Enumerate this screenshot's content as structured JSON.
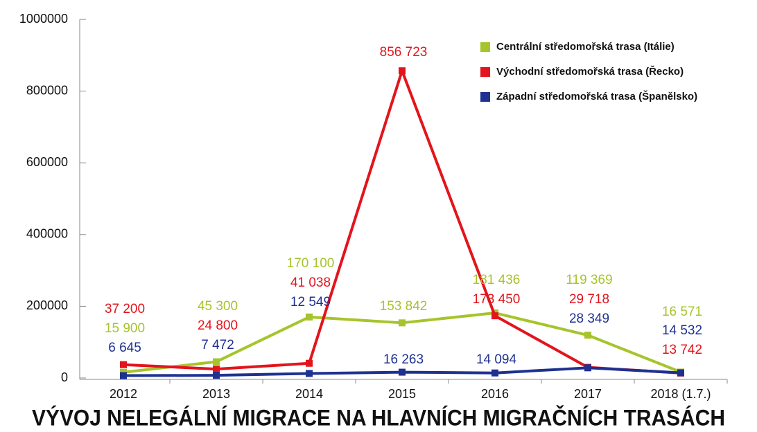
{
  "chart_data": {
    "type": "line",
    "title": "VÝVOJ NELEGÁLNÍ MIGRACE NA HLAVNÍCH MIGRAČNÍCH TRASÁCH",
    "categories": [
      "2012",
      "2013",
      "2014",
      "2015",
      "2016",
      "2017",
      "2018 (1.7.)"
    ],
    "series": [
      {
        "name": "Centrální středomořská trasa (Itálie)",
        "color": "#a6c42c",
        "values": [
          15900,
          45300,
          170100,
          153842,
          181436,
          119369,
          16571
        ],
        "value_labels": [
          "15 900",
          "45 300",
          "170 100",
          "153 842",
          "181 436",
          "119 369",
          "16 571"
        ]
      },
      {
        "name": "Východní středomořská trasa (Řecko)",
        "color": "#e3141c",
        "values": [
          37200,
          24800,
          41038,
          856723,
          173450,
          29718,
          13742
        ],
        "value_labels": [
          "37 200",
          "24 800",
          "41 038",
          "856 723",
          "173 450",
          "29 718",
          "13 742"
        ]
      },
      {
        "name": "Západní středomořská trasa (Španělsko)",
        "color": "#1e3190",
        "values": [
          6645,
          7472,
          12549,
          16263,
          14094,
          28349,
          14532
        ],
        "value_labels": [
          "6 645",
          "7 472",
          "12 549",
          "16 263",
          "14 094",
          "28 349",
          "14 532"
        ]
      }
    ],
    "ylim": [
      0,
      1000000
    ],
    "yticks": [
      0,
      200000,
      400000,
      600000,
      800000,
      1000000
    ]
  }
}
